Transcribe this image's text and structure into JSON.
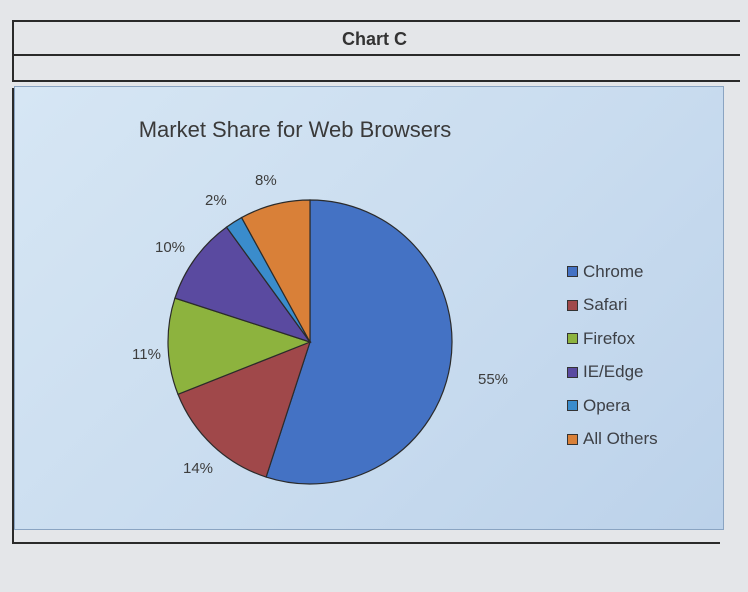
{
  "header": {
    "title": "Chart C"
  },
  "chart_data": {
    "type": "pie",
    "title": "Market Share for Web Browsers",
    "categories": [
      "Chrome",
      "Safari",
      "Firefox",
      "IE/Edge",
      "Opera",
      "All Others"
    ],
    "values": [
      55,
      14,
      11,
      10,
      2,
      8
    ],
    "labels": [
      "55%",
      "14%",
      "11%",
      "10%",
      "2%",
      "8%"
    ],
    "colors": [
      "#4472c4",
      "#a0484a",
      "#8db33e",
      "#5a4aa0",
      "#3a8ccc",
      "#d98038"
    ],
    "legend_position": "right"
  }
}
